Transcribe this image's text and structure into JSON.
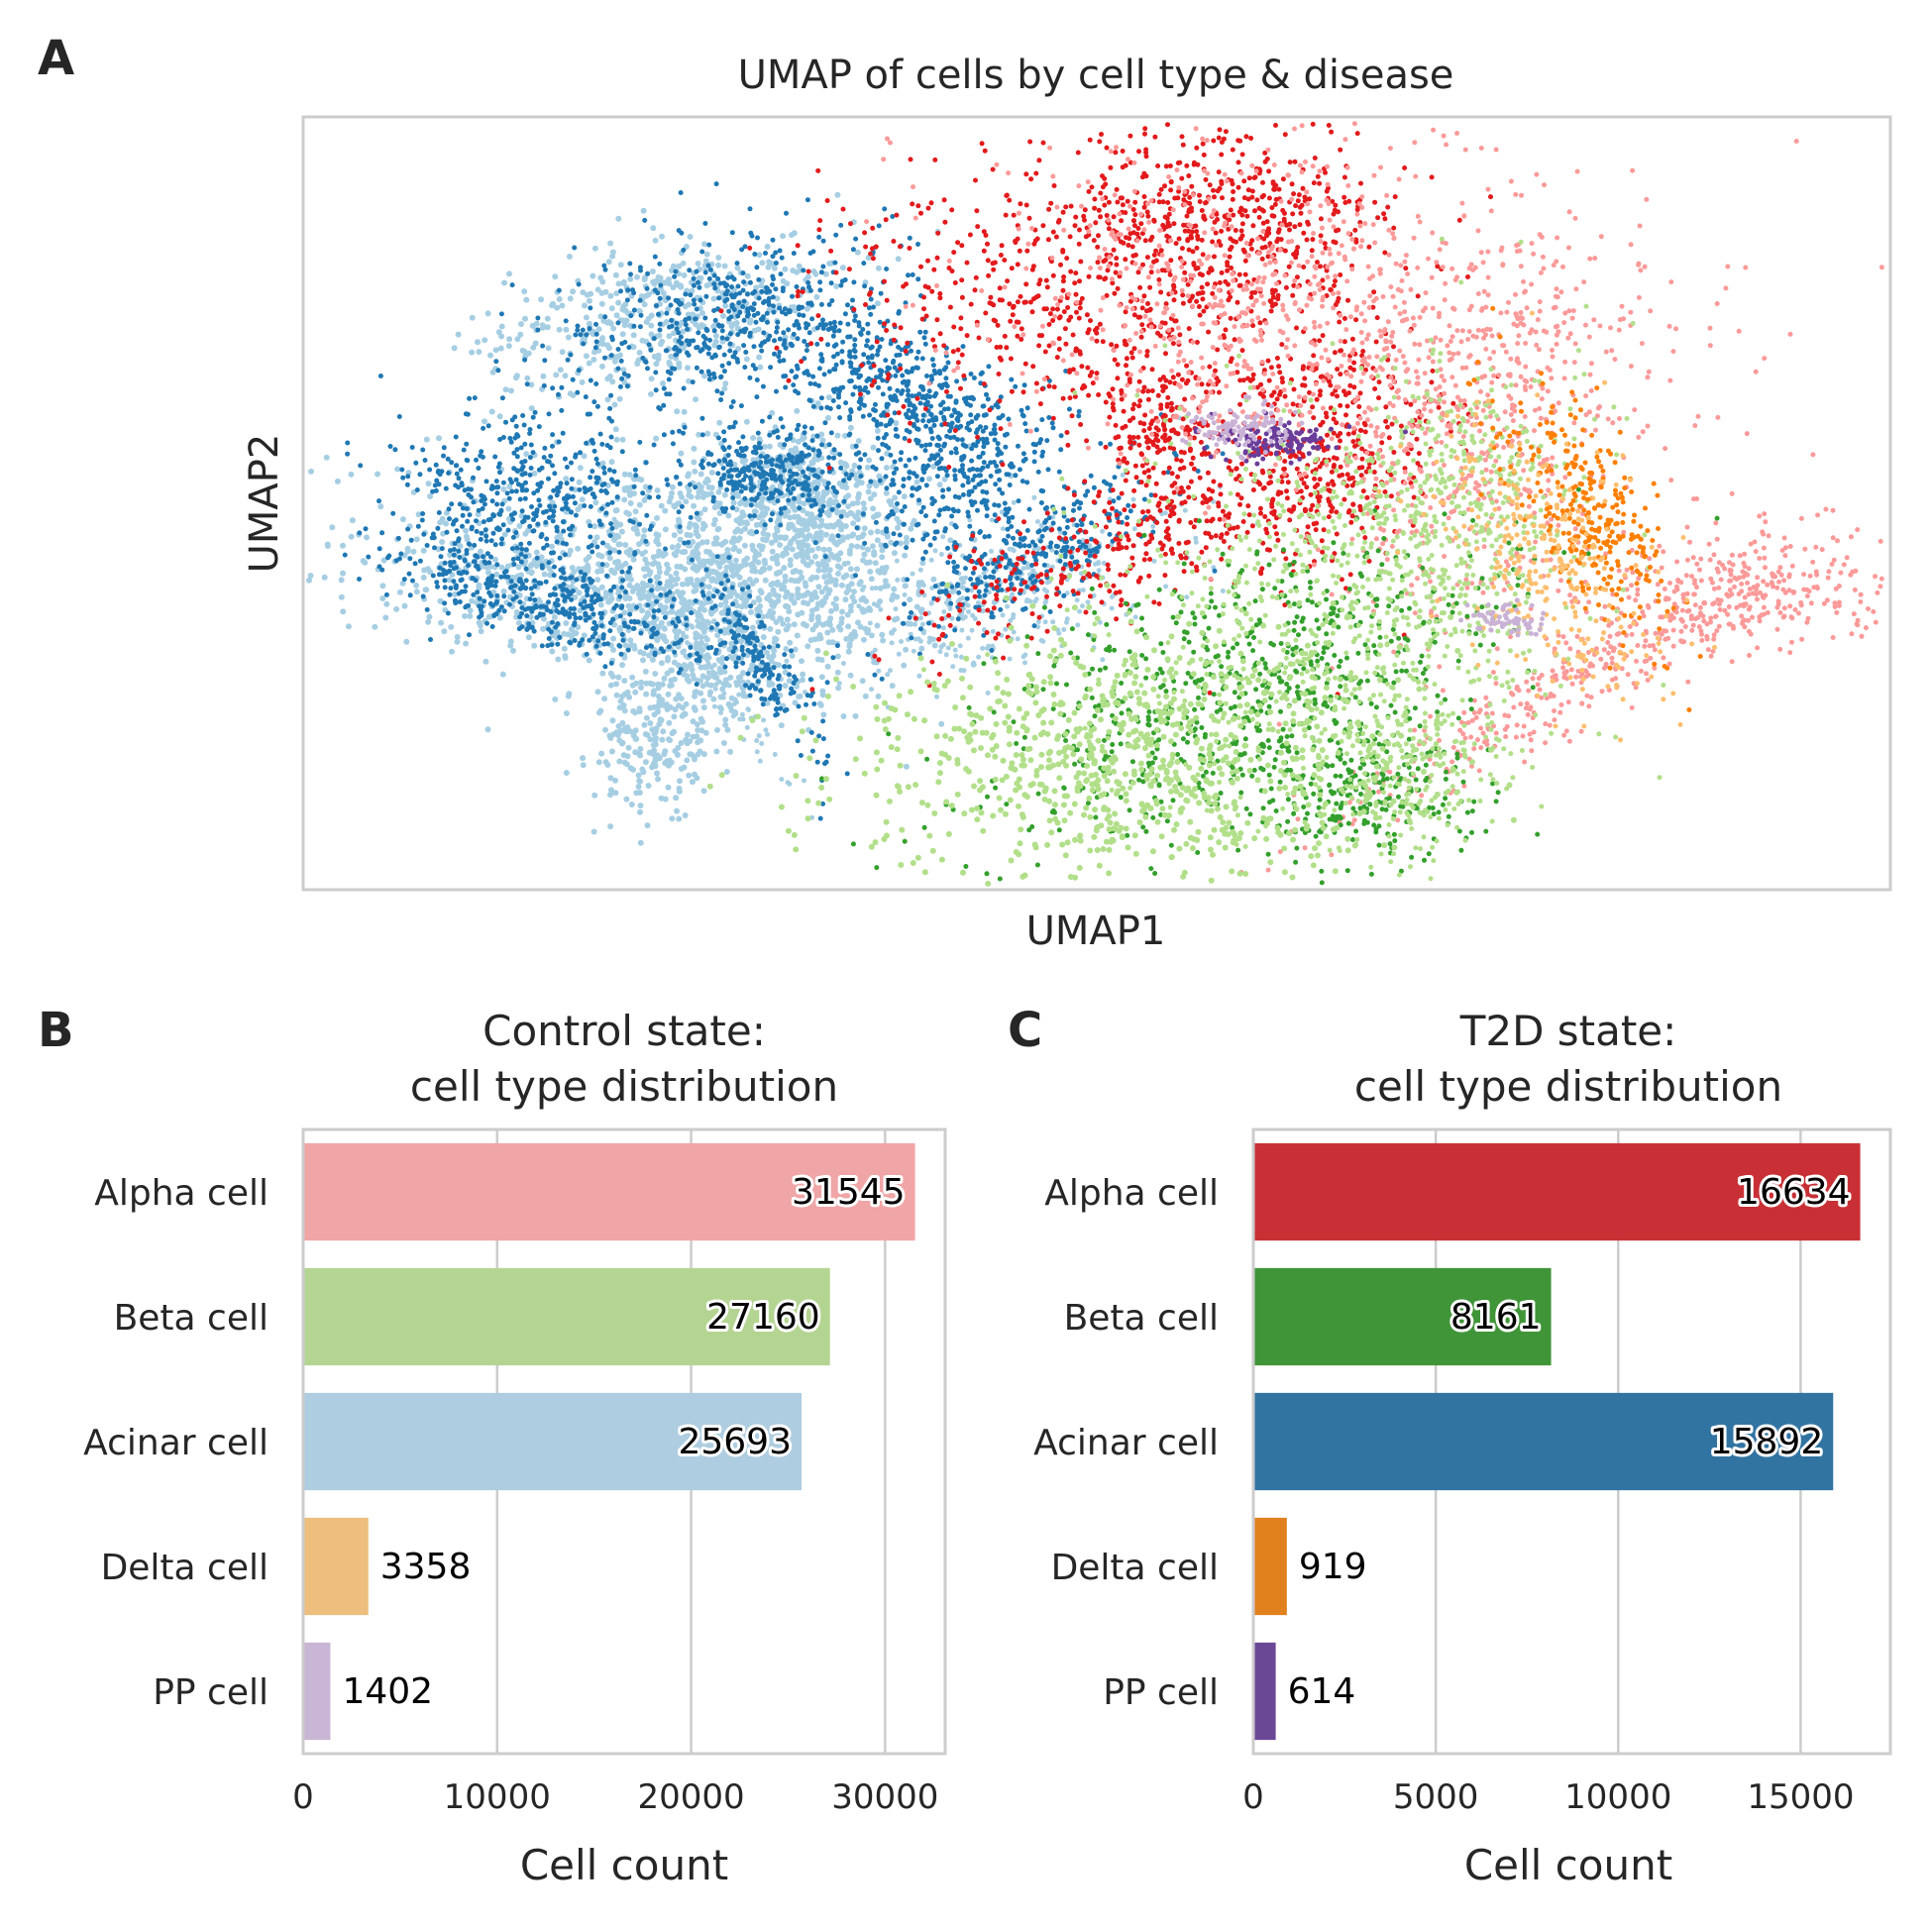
{
  "panels": {
    "a": {
      "letter": "A"
    },
    "b": {
      "letter": "B"
    },
    "c": {
      "letter": "C"
    }
  },
  "chart_data": [
    {
      "type": "scatter",
      "title": "UMAP of cells by cell type & disease",
      "xlabel": "UMAP1",
      "ylabel": "UMAP2",
      "ticks": "none",
      "grid": false,
      "legend": "none",
      "series": [
        {
          "colour": "#1f78b4"
        },
        {
          "colour": "#a6cee3"
        },
        {
          "colour": "#e31a1c"
        },
        {
          "colour": "#fb9a99"
        },
        {
          "colour": "#33a02c"
        },
        {
          "colour": "#b2df8a"
        },
        {
          "colour": "#ff7f00"
        },
        {
          "colour": "#fdbf6f"
        },
        {
          "colour": "#6a3d9a"
        },
        {
          "colour": "#cab2d6"
        }
      ]
    },
    {
      "type": "bar",
      "orientation": "horizontal",
      "title": [
        "Control state:",
        "cell type distribution"
      ],
      "xlabel": "Cell count",
      "categories": [
        "Alpha cell",
        "Beta cell",
        "Acinar cell",
        "Delta cell",
        "PP cell"
      ],
      "values": [
        31545,
        27160,
        25693,
        3358,
        1402
      ],
      "colors": [
        "#f0a5a6",
        "#b4d592",
        "#aecde0",
        "#edbe7e",
        "#c9b5d4"
      ],
      "xlim": [
        0,
        33100
      ],
      "xticks": [
        0,
        10000,
        20000,
        30000
      ],
      "grid": true
    },
    {
      "type": "bar",
      "orientation": "horizontal",
      "title": [
        "T2D state:",
        "cell type distribution"
      ],
      "xlabel": "Cell count",
      "categories": [
        "Alpha cell",
        "Beta cell",
        "Acinar cell",
        "Delta cell",
        "PP cell"
      ],
      "values": [
        16634,
        8161,
        15892,
        919,
        614
      ],
      "colors": [
        "#c83035",
        "#3f9538",
        "#3174a2",
        "#e0811e",
        "#6b4896"
      ],
      "xlim": [
        0,
        17460
      ],
      "xticks": [
        0,
        5000,
        10000,
        15000
      ],
      "grid": true
    }
  ]
}
